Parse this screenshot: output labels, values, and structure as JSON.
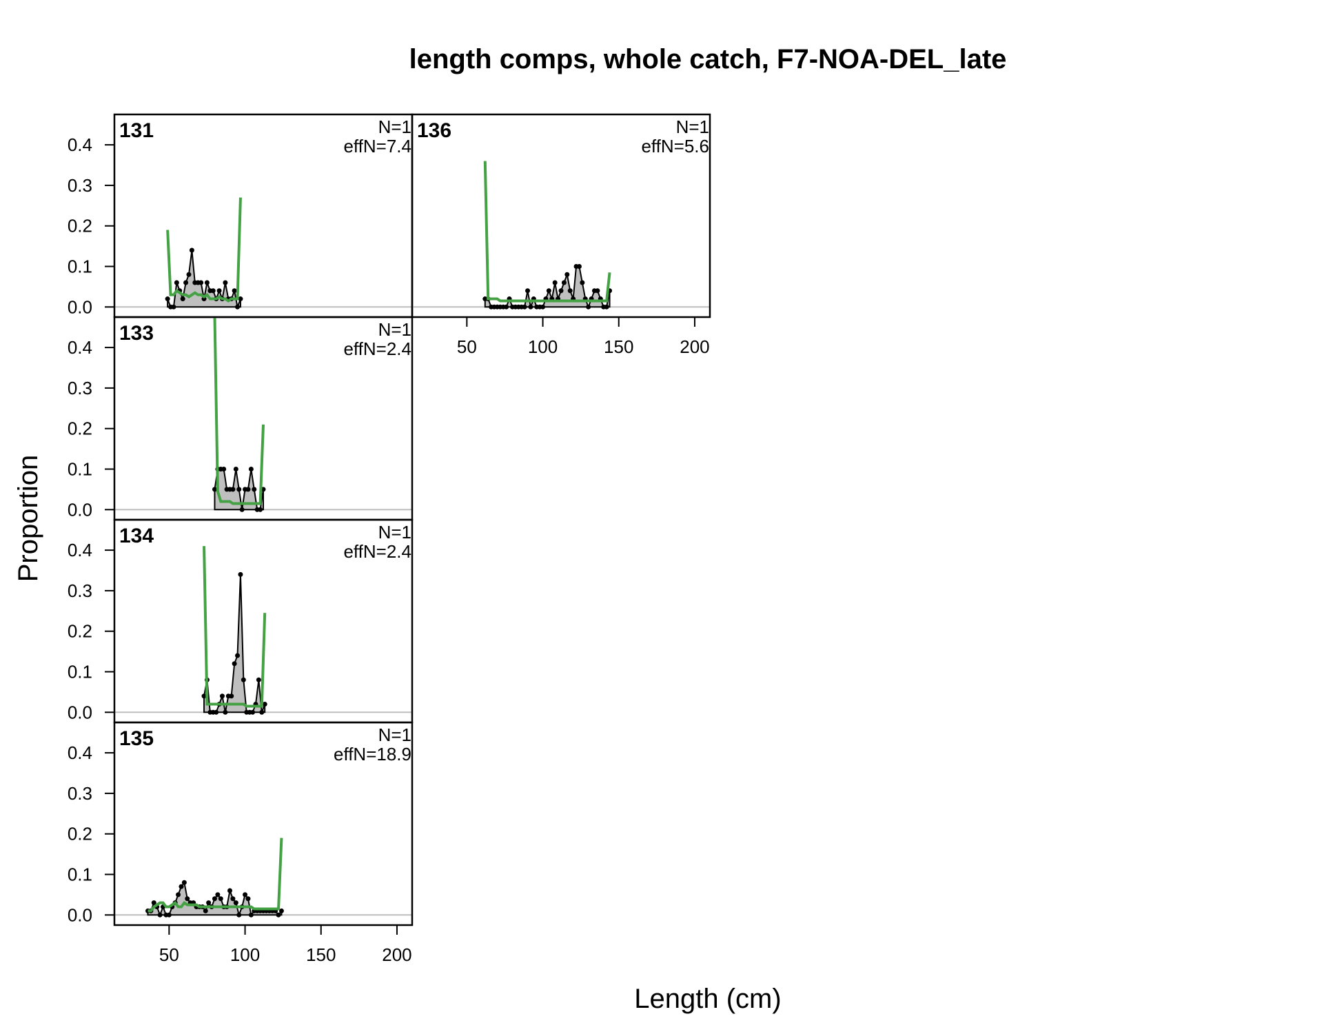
{
  "chart_data": {
    "type": "line",
    "title": "length comps, whole catch, F7-NOA-DEL_late",
    "xlabel": "Length (cm)",
    "ylabel": "Proportion",
    "xlim": [
      14,
      210
    ],
    "ylim": [
      -0.025,
      0.475
    ],
    "x_ticks": [
      50,
      100,
      150,
      200
    ],
    "y_ticks": [
      0.0,
      0.1,
      0.2,
      0.3,
      0.4
    ],
    "y_tick_labels": [
      "0.0",
      "0.1",
      "0.2",
      "0.3",
      "0.4"
    ],
    "colors": {
      "observed_fill": "#bfbfbf",
      "observed_line": "#000000",
      "expected_line": "#44a244",
      "zero_line": "#bebebe"
    },
    "panels": [
      {
        "label": "131",
        "n_text": "N=1",
        "effn_text": "effN=7.4",
        "observed": {
          "x": [
            49,
            51,
            53,
            55,
            57,
            59,
            61,
            63,
            65,
            67,
            69,
            71,
            73,
            75,
            77,
            79,
            81,
            83,
            85,
            87,
            89,
            91,
            93,
            95,
            97
          ],
          "y": [
            0.02,
            0.0,
            0.0,
            0.06,
            0.04,
            0.02,
            0.06,
            0.08,
            0.14,
            0.06,
            0.06,
            0.06,
            0.02,
            0.06,
            0.04,
            0.04,
            0.02,
            0.04,
            0.02,
            0.06,
            0.02,
            0.02,
            0.04,
            0.0,
            0.02
          ]
        },
        "expected": {
          "x": [
            49,
            51,
            53,
            55,
            57,
            59,
            61,
            63,
            65,
            67,
            69,
            71,
            73,
            75,
            77,
            79,
            81,
            83,
            85,
            87,
            89,
            91,
            93,
            95,
            97
          ],
          "y": [
            0.19,
            0.03,
            0.03,
            0.04,
            0.035,
            0.03,
            0.03,
            0.025,
            0.03,
            0.035,
            0.03,
            0.03,
            0.025,
            0.03,
            0.02,
            0.02,
            0.02,
            0.025,
            0.02,
            0.02,
            0.015,
            0.02,
            0.02,
            0.02,
            0.27
          ]
        }
      },
      {
        "label": "133",
        "n_text": "N=1",
        "effn_text": "effN=2.4",
        "observed": {
          "x": [
            80,
            82,
            84,
            86,
            88,
            90,
            92,
            94,
            96,
            98,
            100,
            102,
            104,
            106,
            108,
            110,
            112
          ],
          "y": [
            0.05,
            0.1,
            0.1,
            0.1,
            0.05,
            0.05,
            0.05,
            0.1,
            0.05,
            0.0,
            0.05,
            0.05,
            0.1,
            0.05,
            0.0,
            0.0,
            0.05
          ]
        },
        "expected": {
          "x": [
            80,
            82,
            84,
            86,
            88,
            90,
            92,
            94,
            96,
            98,
            100,
            102,
            104,
            106,
            108,
            110,
            112
          ],
          "y": [
            0.48,
            0.045,
            0.02,
            0.02,
            0.02,
            0.02,
            0.015,
            0.015,
            0.015,
            0.015,
            0.015,
            0.015,
            0.015,
            0.015,
            0.015,
            0.015,
            0.21
          ]
        }
      },
      {
        "label": "134",
        "n_text": "N=1",
        "effn_text": "effN=2.4",
        "observed": {
          "x": [
            73,
            75,
            77,
            79,
            81,
            83,
            85,
            87,
            89,
            91,
            93,
            95,
            97,
            99,
            101,
            103,
            105,
            107,
            109,
            111,
            113
          ],
          "y": [
            0.04,
            0.08,
            0.0,
            0.0,
            0.0,
            0.02,
            0.04,
            0.0,
            0.04,
            0.04,
            0.12,
            0.14,
            0.34,
            0.08,
            0.0,
            0.0,
            0.0,
            0.02,
            0.08,
            0.0,
            0.02
          ]
        },
        "expected": {
          "x": [
            73,
            75,
            77,
            79,
            81,
            83,
            85,
            87,
            89,
            91,
            93,
            95,
            97,
            99,
            101,
            103,
            105,
            107,
            109,
            111,
            113
          ],
          "y": [
            0.41,
            0.02,
            0.02,
            0.02,
            0.02,
            0.02,
            0.02,
            0.02,
            0.02,
            0.02,
            0.02,
            0.02,
            0.02,
            0.02,
            0.015,
            0.015,
            0.015,
            0.015,
            0.015,
            0.015,
            0.245
          ]
        }
      },
      {
        "label": "135",
        "n_text": "N=1",
        "effn_text": "effN=18.9",
        "observed": {
          "x": [
            36,
            38,
            40,
            42,
            44,
            46,
            48,
            50,
            52,
            54,
            56,
            58,
            60,
            62,
            64,
            66,
            68,
            70,
            72,
            74,
            76,
            78,
            80,
            82,
            84,
            86,
            88,
            90,
            92,
            94,
            96,
            98,
            100,
            102,
            104,
            106,
            108,
            110,
            112,
            114,
            116,
            118,
            120,
            122,
            124
          ],
          "y": [
            0.01,
            0.01,
            0.03,
            0.02,
            0.0,
            0.02,
            0.0,
            0.0,
            0.02,
            0.03,
            0.05,
            0.07,
            0.08,
            0.04,
            0.03,
            0.03,
            0.02,
            0.02,
            0.02,
            0.01,
            0.03,
            0.02,
            0.04,
            0.05,
            0.04,
            0.02,
            0.02,
            0.06,
            0.04,
            0.03,
            0.0,
            0.02,
            0.05,
            0.04,
            0.0,
            0.01,
            0.01,
            0.01,
            0.01,
            0.01,
            0.01,
            0.01,
            0.01,
            0.0,
            0.01
          ]
        },
        "expected": {
          "x": [
            36,
            38,
            40,
            42,
            44,
            46,
            48,
            50,
            52,
            54,
            56,
            58,
            60,
            62,
            64,
            66,
            68,
            70,
            72,
            74,
            76,
            78,
            80,
            82,
            84,
            86,
            88,
            90,
            92,
            94,
            96,
            98,
            100,
            102,
            104,
            106,
            108,
            110,
            112,
            114,
            116,
            118,
            120,
            122,
            124
          ],
          "y": [
            0.01,
            0.01,
            0.02,
            0.025,
            0.03,
            0.03,
            0.02,
            0.02,
            0.025,
            0.03,
            0.02,
            0.02,
            0.03,
            0.025,
            0.025,
            0.025,
            0.025,
            0.02,
            0.02,
            0.02,
            0.02,
            0.02,
            0.02,
            0.02,
            0.02,
            0.02,
            0.02,
            0.02,
            0.02,
            0.02,
            0.02,
            0.02,
            0.02,
            0.02,
            0.02,
            0.015,
            0.015,
            0.015,
            0.015,
            0.015,
            0.015,
            0.015,
            0.015,
            0.015,
            0.19
          ]
        }
      },
      {
        "label": "136",
        "n_text": "N=1",
        "effn_text": "effN=5.6",
        "observed": {
          "x": [
            62,
            64,
            66,
            68,
            70,
            72,
            74,
            76,
            78,
            80,
            82,
            84,
            86,
            88,
            90,
            92,
            94,
            96,
            98,
            100,
            102,
            104,
            106,
            108,
            110,
            112,
            114,
            116,
            118,
            120,
            122,
            124,
            126,
            128,
            130,
            132,
            134,
            136,
            138,
            140,
            142,
            144
          ],
          "y": [
            0.02,
            0.02,
            0.0,
            0.0,
            0.0,
            0.0,
            0.0,
            0.0,
            0.02,
            0.0,
            0.0,
            0.0,
            0.0,
            0.0,
            0.04,
            0.0,
            0.02,
            0.0,
            0.0,
            0.0,
            0.02,
            0.04,
            0.02,
            0.06,
            0.02,
            0.04,
            0.06,
            0.08,
            0.04,
            0.02,
            0.1,
            0.1,
            0.06,
            0.02,
            0.0,
            0.02,
            0.04,
            0.04,
            0.02,
            0.0,
            0.0,
            0.04
          ]
        },
        "expected": {
          "x": [
            62,
            64,
            66,
            68,
            70,
            72,
            74,
            76,
            78,
            80,
            82,
            84,
            86,
            88,
            90,
            92,
            94,
            96,
            98,
            100,
            102,
            104,
            106,
            108,
            110,
            112,
            114,
            116,
            118,
            120,
            122,
            124,
            126,
            128,
            130,
            132,
            134,
            136,
            138,
            140,
            142,
            144
          ],
          "y": [
            0.36,
            0.02,
            0.02,
            0.02,
            0.02,
            0.015,
            0.015,
            0.015,
            0.015,
            0.015,
            0.015,
            0.015,
            0.015,
            0.015,
            0.015,
            0.015,
            0.015,
            0.015,
            0.015,
            0.015,
            0.015,
            0.015,
            0.015,
            0.015,
            0.015,
            0.015,
            0.015,
            0.015,
            0.015,
            0.015,
            0.015,
            0.015,
            0.015,
            0.015,
            0.015,
            0.015,
            0.015,
            0.015,
            0.015,
            0.015,
            0.015,
            0.085
          ]
        }
      }
    ]
  }
}
